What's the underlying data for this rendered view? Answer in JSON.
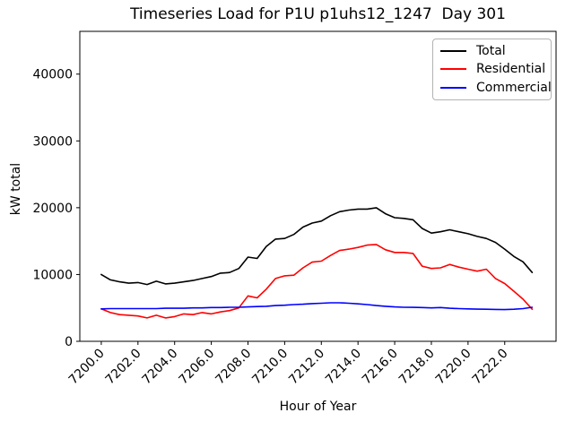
{
  "chart_data": {
    "type": "line",
    "title": "Timeseries Load for P1U p1uhs12_1247  Day 301",
    "xlabel": "Hour of Year",
    "ylabel": "kW total",
    "xlim": [
      7198.83,
      7224.8
    ],
    "ylim": [
      0,
      46400
    ],
    "xticks": [
      "7200.0",
      "7202.0",
      "7204.0",
      "7206.0",
      "7208.0",
      "7210.0",
      "7212.0",
      "7214.0",
      "7216.0",
      "7218.0",
      "7220.0",
      "7222.0"
    ],
    "yticks": [
      "0",
      "10000",
      "20000",
      "30000",
      "40000"
    ],
    "grid": false,
    "legend_position": "upper right",
    "background": "#ffffff",
    "x": [
      7200.0,
      7200.5,
      7201.0,
      7201.5,
      7202.0,
      7202.5,
      7203.0,
      7203.5,
      7204.0,
      7204.5,
      7205.0,
      7205.5,
      7206.0,
      7206.5,
      7207.0,
      7207.5,
      7208.0,
      7208.5,
      7209.0,
      7209.5,
      7210.0,
      7210.5,
      7211.0,
      7211.5,
      7212.0,
      7212.5,
      7213.0,
      7213.5,
      7214.0,
      7214.5,
      7215.0,
      7215.5,
      7216.0,
      7216.5,
      7217.0,
      7217.5,
      7218.0,
      7218.5,
      7219.0,
      7219.5,
      7220.0,
      7220.5,
      7221.0,
      7221.5,
      7222.0,
      7222.5,
      7223.0,
      7223.5
    ],
    "series": [
      {
        "name": "Total",
        "color": "#000000",
        "values": [
          10000,
          9200,
          8900,
          8700,
          8800,
          8500,
          9000,
          8600,
          8700,
          8900,
          9100,
          9400,
          9700,
          10200,
          10300,
          10900,
          12600,
          12400,
          14200,
          15300,
          15400,
          16000,
          17100,
          17700,
          18000,
          18800,
          19400,
          19650,
          19800,
          19800,
          20000,
          19100,
          18500,
          18400,
          18200,
          16900,
          16200,
          16400,
          16700,
          16400,
          16100,
          15700,
          15400,
          14800,
          13800,
          12700,
          11900,
          10300
        ]
      },
      {
        "name": "Residential",
        "color": "#ff0000",
        "values": [
          4850,
          4300,
          4000,
          3900,
          3800,
          3500,
          3900,
          3500,
          3700,
          4100,
          4000,
          4300,
          4100,
          4400,
          4600,
          5000,
          6800,
          6500,
          7800,
          9400,
          9800,
          9900,
          11000,
          11850,
          12000,
          12850,
          13600,
          13800,
          14050,
          14400,
          14500,
          13700,
          13300,
          13300,
          13150,
          11250,
          10900,
          11000,
          11500,
          11100,
          10800,
          10500,
          10800,
          9400,
          8650,
          7500,
          6300,
          4800
        ]
      },
      {
        "name": "Commercial",
        "color": "#0000ff",
        "values": [
          4850,
          4900,
          4900,
          4900,
          4900,
          4900,
          4900,
          4950,
          4950,
          4950,
          5000,
          5000,
          5050,
          5050,
          5100,
          5100,
          5150,
          5200,
          5250,
          5350,
          5400,
          5500,
          5550,
          5650,
          5700,
          5770,
          5770,
          5700,
          5600,
          5500,
          5350,
          5250,
          5150,
          5100,
          5080,
          5050,
          5000,
          5050,
          4950,
          4900,
          4850,
          4820,
          4800,
          4780,
          4750,
          4800,
          4900,
          5100
        ]
      }
    ]
  }
}
